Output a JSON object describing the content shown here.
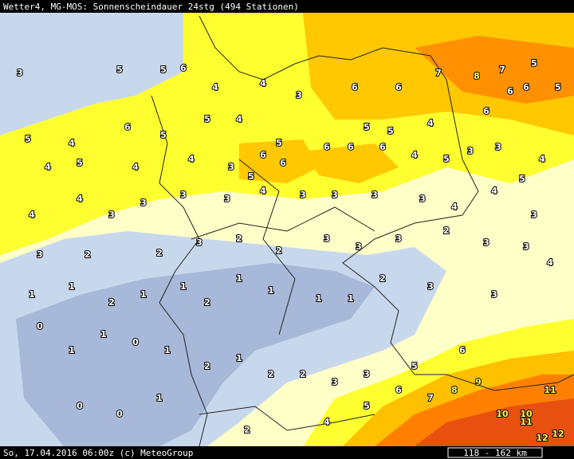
{
  "header": {
    "title": "Wetter4, MG-MOS: Sonnenscheindauer 24stg (494 Stationen)"
  },
  "footer": {
    "caption": "So, 17.04.2016 06:00z (c) MeteoGroup",
    "scale": "118 - 162 km"
  },
  "stations": [
    3,
    5,
    5,
    6,
    4,
    4,
    3,
    6,
    6,
    7,
    8,
    7,
    6,
    5,
    5,
    4,
    6,
    5,
    5,
    4,
    5,
    6,
    6,
    6,
    5,
    5,
    4,
    6,
    6,
    5,
    4,
    5,
    4,
    4,
    3,
    5,
    6,
    6,
    4,
    5,
    3,
    3,
    5,
    4,
    4,
    4,
    3,
    3,
    3,
    3,
    4,
    3,
    3,
    3,
    3,
    4,
    4,
    3,
    3,
    2,
    2,
    3,
    2,
    2,
    3,
    3,
    3,
    2,
    3,
    3,
    4,
    1,
    1,
    2,
    1,
    1,
    2,
    1,
    1,
    1,
    1,
    2,
    3,
    3,
    0,
    1,
    1,
    0,
    1,
    2,
    1,
    2,
    2,
    3,
    3,
    5,
    6,
    0,
    0,
    1,
    2,
    4,
    5,
    6,
    7,
    8,
    9,
    10,
    11,
    12,
    12,
    11,
    10
  ]
}
